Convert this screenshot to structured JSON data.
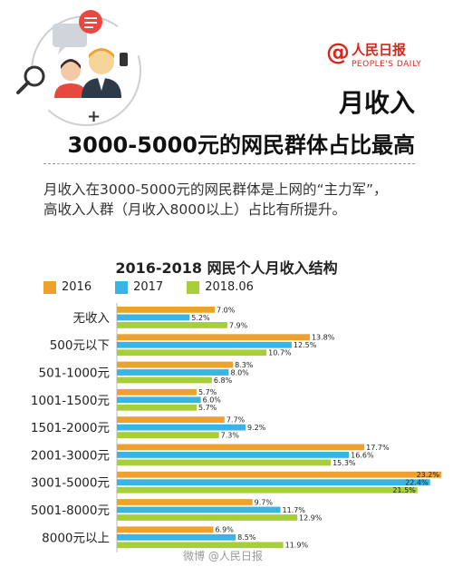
{
  "header": {
    "title": "月收入",
    "subtitle": "3000-5000元的网民群体占比最高",
    "intro_line1": "月收入在3000-5000元的网民群体是上网的“主力军”，",
    "intro_line2": "高收入人群（月收入8000以上）占比有所提升。"
  },
  "logo": {
    "name": "人民日报",
    "english": "PEOPLE'S DAILY",
    "symbol": "@"
  },
  "watermark": "微博 @人民日报",
  "colors": {
    "s2016": "#f0a12d",
    "s2017": "#38b4e6",
    "s2018": "#a7cf3a",
    "brand": "#d9261c"
  },
  "chart_data": {
    "type": "bar",
    "orientation": "horizontal",
    "title": "2016-2018 网民个人月收入结构",
    "categories": [
      "无收入",
      "500元以下",
      "501-1000元",
      "1001-1500元",
      "1501-2000元",
      "2001-3000元",
      "3001-5000元",
      "5001-8000元",
      "8000元以上"
    ],
    "series": [
      {
        "name": "2016",
        "values": [
          7.0,
          13.8,
          8.3,
          5.7,
          7.7,
          17.7,
          23.2,
          9.7,
          6.9
        ]
      },
      {
        "name": "2017",
        "values": [
          5.2,
          12.5,
          8.0,
          6.0,
          9.2,
          16.6,
          22.4,
          11.7,
          8.5
        ]
      },
      {
        "name": "2018.06",
        "values": [
          7.9,
          10.7,
          6.8,
          5.7,
          7.3,
          15.3,
          21.5,
          12.9,
          11.9
        ]
      }
    ],
    "unit": "%",
    "xlim": [
      0,
      23.2
    ],
    "legend_position": "top-left",
    "grid": false
  }
}
